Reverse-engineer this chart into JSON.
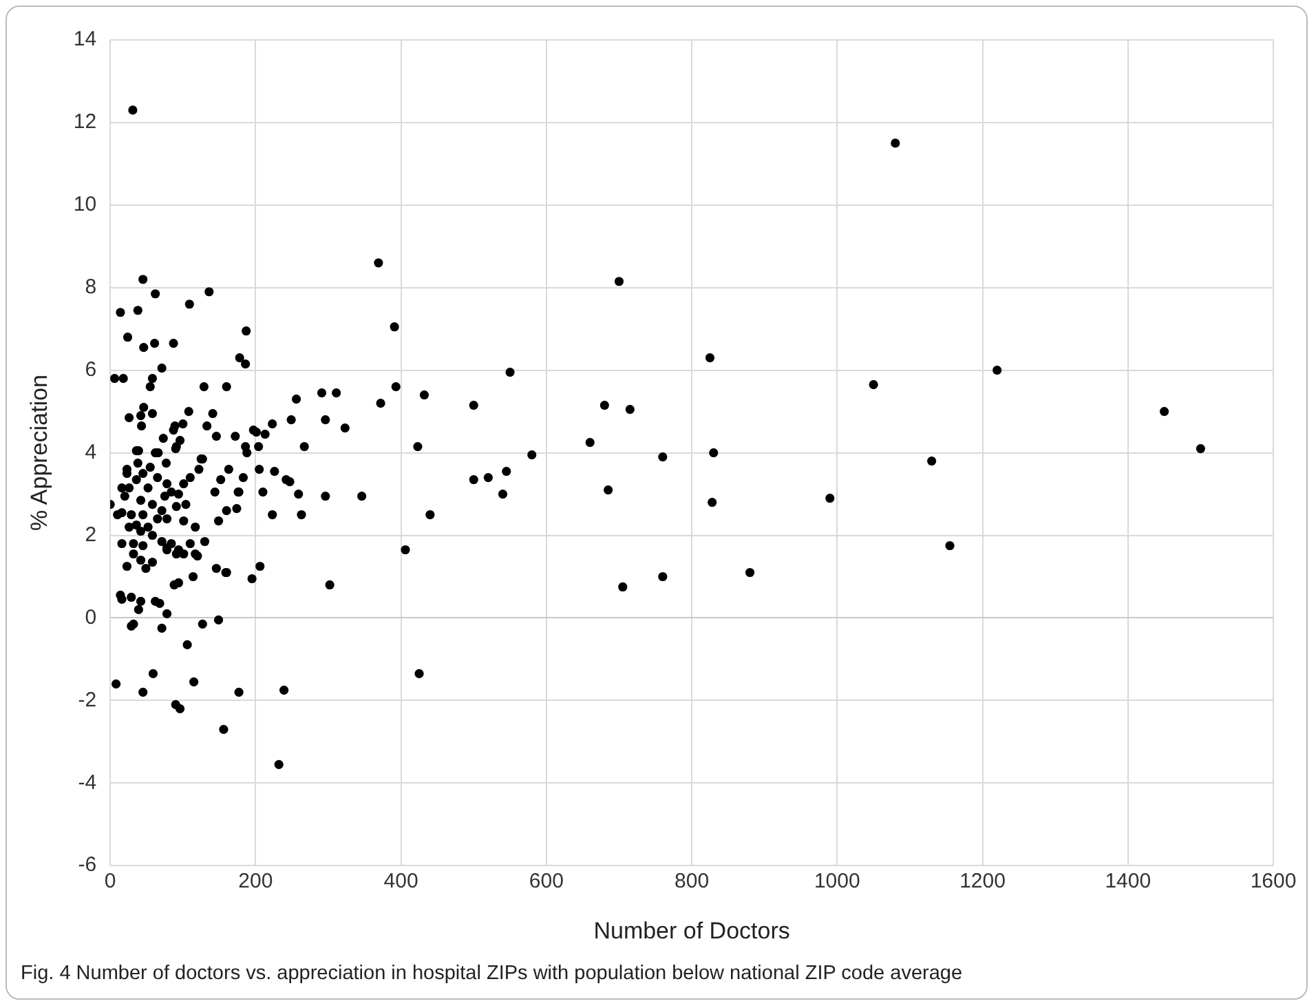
{
  "chart_data": {
    "type": "scatter",
    "xlabel": "Number of Doctors",
    "ylabel": "% Appreciation",
    "annotations": [
      "Fig. 4  Number of doctors vs. appreciation in hospital ZIPs with population below national ZIP code average"
    ],
    "xlim": [
      0,
      1600
    ],
    "xticks": [
      0,
      200,
      400,
      600,
      800,
      1000,
      1200,
      1400,
      1600
    ],
    "ylim": [
      -6,
      14
    ],
    "yticks": [
      -6,
      -4,
      -2,
      0,
      2,
      4,
      6,
      8,
      10,
      12,
      14
    ],
    "grid": true,
    "marker": "circle",
    "series": [
      {
        "color": "#000000",
        "x": [
          31,
          1080,
          1220,
          1050,
          1450,
          1500,
          1130,
          1155,
          990,
          880,
          825,
          830,
          828,
          760,
          760,
          700,
          680,
          715,
          660,
          685,
          705,
          580,
          550,
          540,
          545,
          500,
          500,
          520,
          369,
          391,
          393,
          372,
          432,
          423,
          440,
          406,
          425,
          187,
          178,
          186,
          160,
          256,
          291,
          311,
          249,
          296,
          323,
          223,
          197,
          201,
          213,
          172,
          186,
          204,
          188,
          267,
          163,
          205,
          226,
          183,
          242,
          247,
          177,
          210,
          259,
          296,
          346,
          160,
          174,
          223,
          263,
          160,
          195,
          206,
          302,
          177,
          239,
          156,
          232,
          45,
          62,
          136,
          109,
          14,
          38,
          24,
          46,
          61,
          87,
          71,
          6,
          18,
          58,
          55,
          129,
          46,
          42,
          26,
          58,
          43,
          108,
          141,
          89,
          100,
          87,
          133,
          146,
          73,
          96,
          91,
          36,
          39,
          66,
          77,
          125,
          38,
          55,
          23,
          62,
          90,
          127,
          122,
          152,
          144,
          176,
          149,
          0,
          10,
          16,
          23,
          26,
          16,
          36,
          45,
          52,
          65,
          78,
          84,
          75,
          94,
          101,
          110,
          20,
          42,
          58,
          71,
          91,
          104,
          29,
          45,
          65,
          78,
          36,
          52,
          26,
          42,
          58,
          71,
          84,
          16,
          32,
          45,
          78,
          94,
          110,
          130,
          117,
          101,
          32,
          42,
          58,
          23,
          49,
          78,
          91,
          101,
          117,
          120,
          146,
          159,
          114,
          88,
          94,
          14,
          16,
          29,
          42,
          62,
          68,
          78,
          39,
          32,
          29,
          71,
          127,
          149,
          106,
          8,
          45,
          59,
          115,
          90,
          96
        ],
        "values": [
          12.3,
          11.5,
          6.0,
          5.65,
          5.0,
          4.1,
          3.8,
          1.75,
          2.9,
          1.1,
          6.3,
          4.0,
          2.8,
          3.9,
          1.0,
          8.15,
          5.15,
          5.05,
          4.25,
          3.1,
          0.75,
          3.95,
          5.95,
          3.0,
          3.55,
          5.15,
          3.35,
          3.4,
          8.6,
          7.05,
          5.6,
          5.2,
          5.4,
          4.15,
          2.5,
          1.65,
          -1.35,
          6.95,
          6.3,
          6.15,
          5.6,
          5.3,
          5.45,
          5.45,
          4.8,
          4.8,
          4.6,
          4.7,
          4.55,
          4.5,
          4.45,
          4.4,
          4.15,
          4.15,
          4.0,
          4.15,
          3.6,
          3.6,
          3.55,
          3.4,
          3.35,
          3.3,
          3.05,
          3.05,
          3.0,
          2.95,
          2.95,
          2.6,
          2.65,
          2.5,
          2.5,
          1.1,
          0.95,
          1.25,
          0.8,
          -1.8,
          -1.75,
          -2.7,
          -3.55,
          8.2,
          7.85,
          7.9,
          7.6,
          7.4,
          7.45,
          6.8,
          6.55,
          6.65,
          6.65,
          6.05,
          5.8,
          5.8,
          5.8,
          5.6,
          5.6,
          5.1,
          4.9,
          4.85,
          4.95,
          4.65,
          5.0,
          4.95,
          4.65,
          4.7,
          4.55,
          4.65,
          4.4,
          4.35,
          4.3,
          4.15,
          4.05,
          4.05,
          4.0,
          3.75,
          3.85,
          3.75,
          3.65,
          3.6,
          4.0,
          4.1,
          3.85,
          3.6,
          3.35,
          3.05,
          3.05,
          2.35,
          2.75,
          2.5,
          2.55,
          3.5,
          3.15,
          3.15,
          3.35,
          3.5,
          3.15,
          3.4,
          3.25,
          3.05,
          2.95,
          3.0,
          3.25,
          3.4,
          2.95,
          2.85,
          2.75,
          2.6,
          2.7,
          2.75,
          2.5,
          2.5,
          2.4,
          2.4,
          2.25,
          2.2,
          2.2,
          2.1,
          2.0,
          1.85,
          1.8,
          1.8,
          1.8,
          1.75,
          1.7,
          1.65,
          1.8,
          1.85,
          1.55,
          1.55,
          1.55,
          1.4,
          1.35,
          1.25,
          1.2,
          1.65,
          1.55,
          2.35,
          2.2,
          1.5,
          1.2,
          1.1,
          1.0,
          0.8,
          0.85,
          0.55,
          0.45,
          0.5,
          0.4,
          0.4,
          0.35,
          0.1,
          0.2,
          -0.15,
          -0.2,
          -0.25,
          -0.15,
          -0.05,
          -0.65,
          -1.6,
          -1.8,
          -1.35,
          -1.55,
          -2.1,
          -2.2
        ]
      }
    ]
  }
}
